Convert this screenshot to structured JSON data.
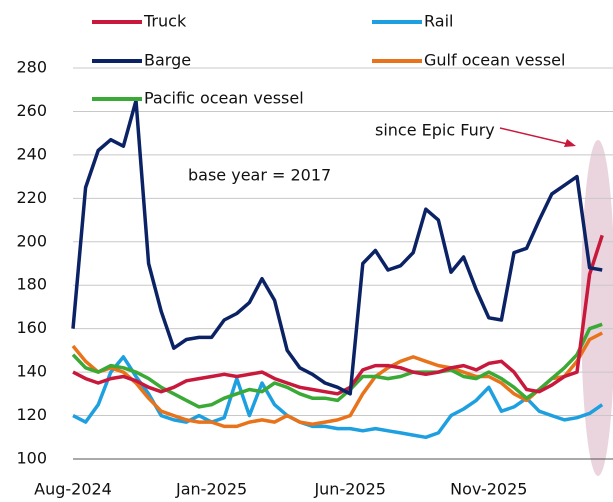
{
  "chart_data": {
    "type": "line",
    "annotations": [
      "since Epic Fury",
      "base year = 2017"
    ],
    "categories": [
      "Aug-2024",
      null,
      null,
      null,
      null,
      null,
      null,
      null,
      null,
      null,
      null,
      "Jan-2025",
      null,
      null,
      null,
      null,
      null,
      null,
      null,
      null,
      null,
      null,
      "Jun-2025",
      null,
      null,
      null,
      null,
      null,
      null,
      null,
      null,
      null,
      null,
      "Nov-2025",
      null,
      null,
      null,
      null,
      null,
      null,
      null,
      null,
      null
    ],
    "series": [
      {
        "name": "Rail",
        "color": "#1ea0e0",
        "values": [
          120,
          117,
          125,
          140,
          147,
          138,
          130,
          120,
          118,
          117,
          120,
          117,
          119,
          137,
          120,
          135,
          125,
          120,
          117,
          115,
          115,
          114,
          114,
          113,
          114,
          113,
          112,
          111,
          110,
          112,
          120,
          123,
          127,
          133,
          122,
          124,
          128,
          122,
          120,
          118,
          119,
          121,
          125
        ]
      },
      {
        "name": "Gulf ocean vessel",
        "color": "#e8731a",
        "values": [
          152,
          145,
          140,
          142,
          140,
          135,
          128,
          122,
          120,
          118,
          117,
          117,
          115,
          115,
          117,
          118,
          117,
          120,
          117,
          116,
          117,
          118,
          120,
          130,
          138,
          142,
          145,
          147,
          145,
          143,
          142,
          140,
          138,
          138,
          135,
          130,
          127,
          132,
          137,
          138,
          145,
          155,
          158
        ]
      },
      {
        "name": "Pacific ocean vessel",
        "color": "#3aa935",
        "values": [
          148,
          142,
          140,
          143,
          142,
          140,
          137,
          133,
          130,
          127,
          124,
          125,
          128,
          130,
          132,
          131,
          135,
          133,
          130,
          128,
          128,
          127,
          132,
          138,
          138,
          137,
          138,
          140,
          140,
          140,
          141,
          138,
          137,
          140,
          137,
          133,
          128,
          132,
          137,
          142,
          148,
          160,
          162
        ]
      },
      {
        "name": "Truck",
        "color": "#c8193c",
        "values": [
          140,
          137,
          135,
          137,
          138,
          136,
          133,
          131,
          133,
          136,
          137,
          138,
          139,
          138,
          139,
          140,
          137,
          135,
          133,
          132,
          131,
          130,
          133,
          141,
          143,
          143,
          142,
          140,
          139,
          140,
          142,
          143,
          141,
          144,
          145,
          140,
          132,
          131,
          134,
          138,
          140,
          185,
          203
        ]
      },
      {
        "name": "Barge",
        "color": "#0b2265",
        "values": [
          160,
          225,
          242,
          247,
          244,
          265,
          190,
          168,
          151,
          155,
          156,
          156,
          164,
          167,
          172,
          183,
          173,
          150,
          142,
          139,
          135,
          133,
          130,
          190,
          196,
          187,
          189,
          195,
          215,
          210,
          186,
          193,
          178,
          165,
          164,
          195,
          197,
          210,
          222,
          226,
          230,
          188,
          187
        ]
      }
    ],
    "ylim": [
      100,
      280
    ],
    "yticks": [
      100,
      120,
      140,
      160,
      180,
      200,
      220,
      240,
      260,
      280
    ],
    "grid": true
  }
}
